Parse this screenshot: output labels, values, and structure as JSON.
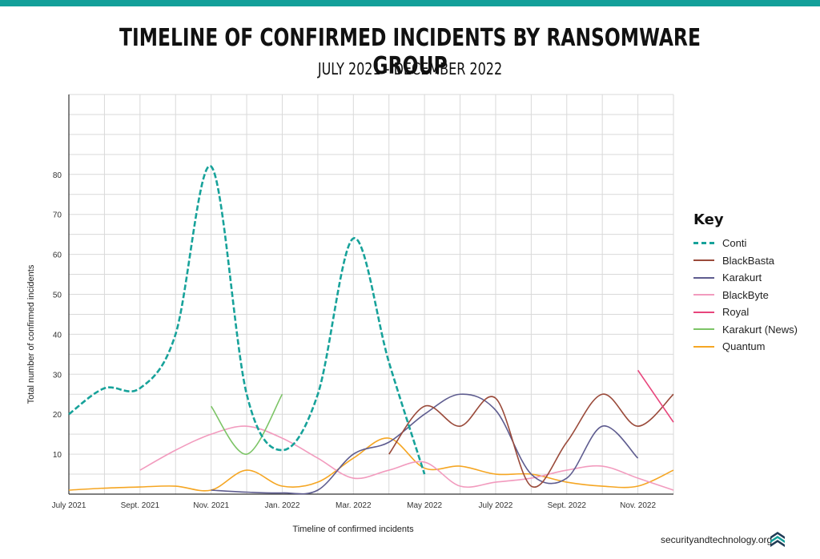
{
  "header": {
    "title": "TIMELINE OF CONFIRMED INCIDENTS BY RANSOMWARE GROUP",
    "subtitle": "JULY 2021 - DECEMBER 2022"
  },
  "footer": {
    "site": "securityandtechnology.org",
    "logo_icon": "stacked-chevrons-logo-icon"
  },
  "colors": {
    "accent_bar": "#14a09a",
    "grid": "#d9d9d9",
    "axis": "#333333"
  },
  "chart_data": {
    "type": "line",
    "title": "TIMELINE OF CONFIRMED INCIDENTS BY RANSOMWARE GROUP",
    "subtitle": "JULY 2021 - DECEMBER 2022",
    "xlabel": "Timeline of confirmed incidents",
    "ylabel": "Total number of confirmed incidents",
    "x_tick_labels": [
      "July 2021",
      "Sept. 2021",
      "Nov. 2021",
      "Jan. 2022",
      "Mar. 2022",
      "May 2022",
      "July 2022",
      "Sept. 2022",
      "Nov. 2022"
    ],
    "y_ticks": [
      10,
      20,
      30,
      40,
      50,
      60,
      70,
      80
    ],
    "xlim": [
      0,
      17
    ],
    "ylim": [
      0,
      100
    ],
    "grid": true,
    "legend_title": "Key",
    "legend_position": "right",
    "series": [
      {
        "name": "Conti",
        "color": "#17a29a",
        "dashed": true,
        "points": [
          [
            0,
            20
          ],
          [
            1,
            26.5
          ],
          [
            2,
            26.5
          ],
          [
            3,
            40
          ],
          [
            4,
            82
          ],
          [
            5,
            25
          ],
          [
            6,
            11
          ],
          [
            7,
            25
          ],
          [
            8,
            64
          ],
          [
            9,
            33
          ],
          [
            10,
            5
          ]
        ]
      },
      {
        "name": "BlackBasta",
        "color": "#9a4a3a",
        "dashed": false,
        "points": [
          [
            9,
            10
          ],
          [
            10,
            22
          ],
          [
            11,
            17
          ],
          [
            12,
            24
          ],
          [
            13,
            2
          ],
          [
            14,
            13
          ],
          [
            15,
            25
          ],
          [
            16,
            17
          ],
          [
            17,
            25
          ]
        ]
      },
      {
        "name": "Karakurt",
        "color": "#5e5c8f",
        "dashed": false,
        "points": [
          [
            4,
            1
          ],
          [
            5,
            0.5
          ],
          [
            6,
            0.3
          ],
          [
            7,
            1
          ],
          [
            8,
            10
          ],
          [
            9,
            13
          ],
          [
            10,
            20
          ],
          [
            11,
            25
          ],
          [
            12,
            21
          ],
          [
            13,
            5
          ],
          [
            14,
            4
          ],
          [
            15,
            17
          ],
          [
            16,
            9
          ]
        ]
      },
      {
        "name": "BlackByte",
        "color": "#f29bbe",
        "dashed": false,
        "points": [
          [
            2,
            6
          ],
          [
            3,
            11
          ],
          [
            4,
            15
          ],
          [
            5,
            17
          ],
          [
            6,
            14
          ],
          [
            7,
            9
          ],
          [
            8,
            4
          ],
          [
            9,
            6
          ],
          [
            10,
            8
          ],
          [
            11,
            2
          ],
          [
            12,
            3
          ],
          [
            13,
            4
          ],
          [
            14,
            6
          ],
          [
            15,
            7
          ],
          [
            16,
            4
          ],
          [
            17,
            1
          ]
        ]
      },
      {
        "name": "Royal",
        "color": "#e8457c",
        "dashed": false,
        "points": [
          [
            16,
            31
          ],
          [
            17,
            18
          ]
        ]
      },
      {
        "name": "Karakurt (News)",
        "color": "#7cc466",
        "dashed": false,
        "points": [
          [
            4,
            22
          ],
          [
            5,
            10
          ],
          [
            6,
            25
          ]
        ]
      },
      {
        "name": "Quantum",
        "color": "#f5a623",
        "dashed": false,
        "points": [
          [
            0,
            1
          ],
          [
            1,
            1.5
          ],
          [
            2,
            1.8
          ],
          [
            3,
            2
          ],
          [
            4,
            1
          ],
          [
            5,
            6
          ],
          [
            6,
            2
          ],
          [
            7,
            3
          ],
          [
            8,
            9
          ],
          [
            9,
            14
          ],
          [
            10,
            6.5
          ],
          [
            11,
            7
          ],
          [
            12,
            5
          ],
          [
            13,
            5
          ],
          [
            14,
            3
          ],
          [
            15,
            2
          ],
          [
            16,
            2
          ],
          [
            17,
            6
          ]
        ]
      }
    ]
  }
}
